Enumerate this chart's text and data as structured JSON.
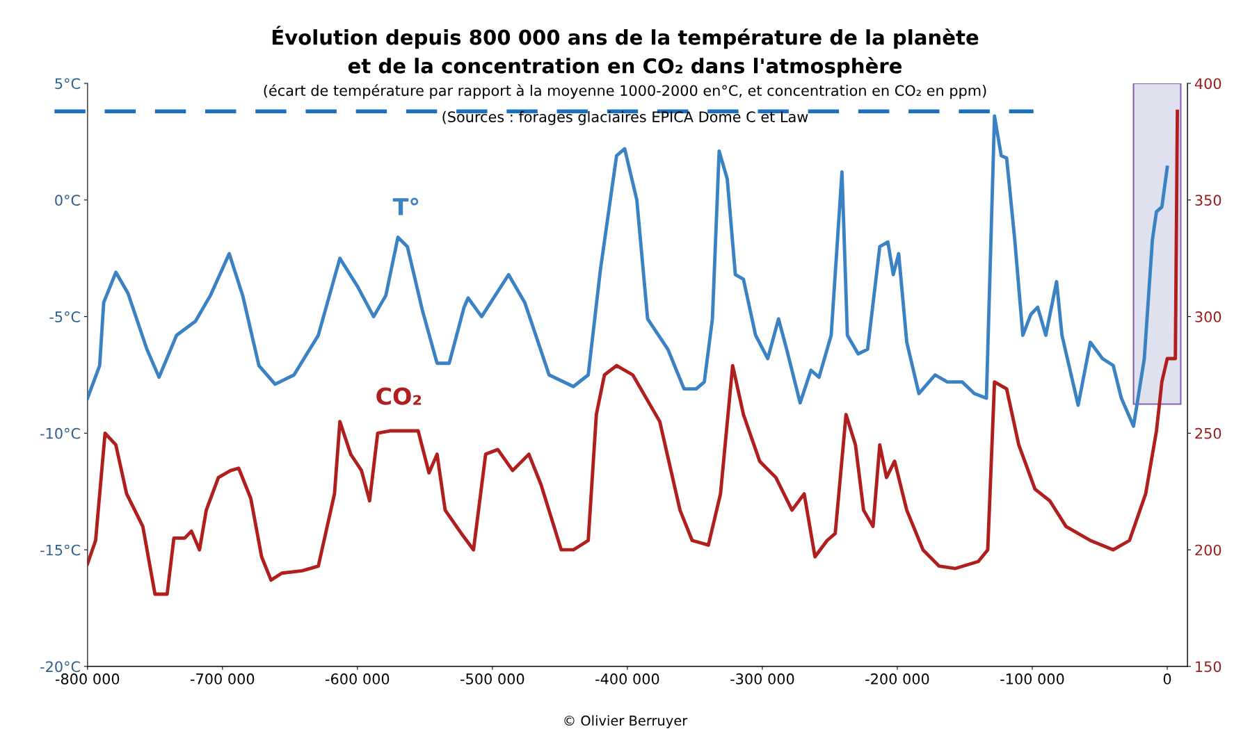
{
  "chart_data": {
    "type": "line",
    "title": "Évolution depuis 800 000 ans de la température de la planète\net de la concentration en CO₂ dans l'atmosphère",
    "subtitle": "(écart de température par rapport à la moyenne 1000-2000 en°C, et concentration en CO₂ en ppm)",
    "annotations": [
      "(Sources : forages glaciaires EPICA Dome C et Law",
      "© Olivier Berruyer"
    ],
    "xlim": [
      -800000,
      15000
    ],
    "xticks": [
      {
        "value": -800000,
        "label": "-800 000"
      },
      {
        "value": -700000,
        "label": "-700 000"
      },
      {
        "value": -600000,
        "label": "-600 000"
      },
      {
        "value": -500000,
        "label": "-500 000"
      },
      {
        "value": -400000,
        "label": "-400 000"
      },
      {
        "value": -300000,
        "label": "-300 000"
      },
      {
        "value": -200000,
        "label": "-200 000"
      },
      {
        "value": -100000,
        "label": "-100 000"
      },
      {
        "value": 0,
        "label": "0"
      }
    ],
    "ylim": [
      -20,
      5
    ],
    "yticks": [
      {
        "value": -20,
        "label": "-20°C"
      },
      {
        "value": -15,
        "label": "-15°C"
      },
      {
        "value": -10,
        "label": "-10°C"
      },
      {
        "value": -5,
        "label": "-5°C"
      },
      {
        "value": 0,
        "label": "0°C"
      },
      {
        "value": 5,
        "label": "5°C"
      }
    ],
    "y2lim": [
      150,
      400
    ],
    "y2ticks": [
      150,
      200,
      250,
      300,
      350,
      400
    ],
    "grid": false,
    "legend": false,
    "marker": "none",
    "line_style": "solid",
    "ref_lines": [
      {
        "axis": "y",
        "value": 3.8,
        "color": "#1a6fc4",
        "line_style": "dashed"
      }
    ],
    "bands": [
      {
        "axis": "x",
        "from": -25000,
        "to": 10000,
        "color": "#dfe1ee"
      }
    ],
    "series": [
      {
        "name": "T°",
        "color": "#3b82c4",
        "x": [
          -800000,
          -791000,
          -788000,
          -779000,
          -770000,
          -756000,
          -747000,
          -734000,
          -720000,
          -709000,
          -695000,
          -685000,
          -673000,
          -661000,
          -647000,
          -629000,
          -613000,
          -600000,
          -588000,
          -579000,
          -570000,
          -563000,
          -552000,
          -541000,
          -532000,
          -521000,
          -518000,
          -508000,
          -488000,
          -476000,
          -458000,
          -440000,
          -429000,
          -420000,
          -408000,
          -402000,
          -393000,
          -385000,
          -370000,
          -358000,
          -349000,
          -343000,
          -337000,
          -332000,
          -326000,
          -320000,
          -314000,
          -305000,
          -296000,
          -288000,
          -282000,
          -272000,
          -264000,
          -258000,
          -249000,
          -241000,
          -237000,
          -229000,
          -222000,
          -213000,
          -207000,
          -203000,
          -199000,
          -193000,
          -184000,
          -172000,
          -163000,
          -152000,
          -143000,
          -134000,
          -128000,
          -123000,
          -119000,
          -113000,
          -107000,
          -101000,
          -96000,
          -90000,
          -82000,
          -78000,
          -66000,
          -57000,
          -48000,
          -40000,
          -34000,
          -25000,
          -17000,
          -11000,
          -8000,
          -4000,
          0
        ],
        "values": [
          -8.5,
          -7.1,
          -4.4,
          -3.1,
          -4.0,
          -6.4,
          -7.6,
          -5.8,
          -5.2,
          -4.1,
          -2.3,
          -4.1,
          -7.1,
          -7.9,
          -7.5,
          -5.8,
          -2.5,
          -3.7,
          -5.0,
          -4.1,
          -1.6,
          -2.0,
          -4.7,
          -7.0,
          -7.0,
          -4.6,
          -4.2,
          -5.0,
          -3.2,
          -4.4,
          -7.5,
          -8.0,
          -7.5,
          -3.0,
          1.9,
          2.2,
          0.0,
          -5.1,
          -6.4,
          -8.1,
          -8.1,
          -7.8,
          -5.1,
          2.1,
          0.9,
          -3.2,
          -3.4,
          -5.8,
          -6.8,
          -5.1,
          -6.4,
          -8.7,
          -7.3,
          -7.6,
          -5.8,
          1.2,
          -5.8,
          -6.6,
          -6.4,
          -2.0,
          -1.8,
          -3.2,
          -2.3,
          -6.1,
          -8.3,
          -7.5,
          -7.8,
          -7.8,
          -8.3,
          -8.5,
          3.6,
          1.9,
          1.8,
          -1.7,
          -5.8,
          -4.9,
          -4.6,
          -5.8,
          -3.5,
          -5.8,
          -8.8,
          -6.1,
          -6.8,
          -7.1,
          -8.5,
          -9.7,
          -6.8,
          -1.7,
          -0.5,
          -0.3,
          1.4
        ]
      },
      {
        "name": "CO₂",
        "color": "#b01e1e",
        "axis": "y2",
        "x": [
          -800000,
          -794000,
          -787000,
          -779000,
          -771000,
          -759000,
          -750000,
          -741000,
          -736000,
          -728000,
          -723000,
          -717000,
          -712000,
          -703000,
          -694000,
          -688000,
          -679000,
          -671000,
          -664000,
          -656000,
          -641000,
          -629000,
          -617000,
          -613000,
          -605000,
          -597000,
          -591000,
          -585000,
          -576000,
          -555000,
          -547000,
          -541000,
          -535000,
          -523000,
          -514000,
          -505000,
          -496000,
          -485000,
          -473000,
          -464000,
          -449000,
          -440000,
          -429000,
          -423000,
          -417000,
          -408000,
          -396000,
          -376000,
          -361000,
          -352000,
          -340000,
          -331000,
          -322000,
          -314000,
          -302000,
          -290000,
          -278000,
          -269000,
          -261000,
          -252000,
          -246000,
          -238000,
          -231000,
          -225000,
          -218000,
          -213000,
          -208000,
          -202000,
          -193000,
          -181000,
          -169000,
          -157000,
          -140000,
          -133000,
          -128000,
          -119000,
          -110000,
          -98000,
          -87000,
          -75000,
          -57000,
          -40000,
          -28000,
          -16000,
          -8000,
          -4000,
          0,
          6000,
          7500
        ],
        "values": [
          194,
          204,
          250,
          245,
          224,
          210,
          181,
          181,
          205,
          205,
          208,
          200,
          217,
          231,
          234,
          235,
          222,
          197,
          187,
          190,
          191,
          193,
          224,
          255,
          241,
          234,
          221,
          250,
          251,
          251,
          233,
          241,
          217,
          207,
          200,
          241,
          243,
          234,
          241,
          228,
          200,
          200,
          204,
          258,
          275,
          279,
          275,
          255,
          217,
          204,
          202,
          224,
          279,
          258,
          238,
          231,
          217,
          224,
          197,
          204,
          207,
          258,
          245,
          217,
          210,
          245,
          231,
          238,
          217,
          200,
          193,
          192,
          195,
          200,
          272,
          269,
          245,
          226,
          221,
          210,
          204,
          200,
          204,
          224,
          251,
          272,
          282,
          282,
          388
        ]
      }
    ]
  }
}
